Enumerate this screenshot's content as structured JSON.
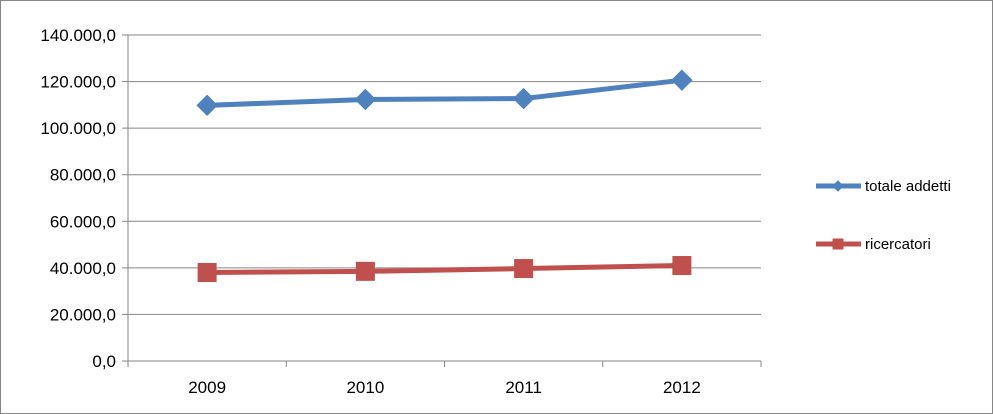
{
  "chart_data": {
    "type": "line",
    "categories": [
      "2009",
      "2010",
      "2011",
      "2012"
    ],
    "series": [
      {
        "name": "totale addetti",
        "values": [
          109800,
          112300,
          112700,
          120600
        ],
        "color": "#4F81BD",
        "marker": "diamond"
      },
      {
        "name": "ricercatori",
        "values": [
          38000,
          38500,
          39700,
          41000
        ],
        "color": "#C0504D",
        "marker": "square"
      }
    ],
    "y_ticks": [
      "0,0",
      "20.000,0",
      "40.000,0",
      "60.000,0",
      "80.000,0",
      "100.000,0",
      "120.000,0",
      "140.000,0"
    ],
    "ylim": [
      0,
      140000
    ],
    "y_step": 20000,
    "grid": true,
    "legend_position": "right",
    "title": "",
    "xlabel": "",
    "ylabel": ""
  }
}
